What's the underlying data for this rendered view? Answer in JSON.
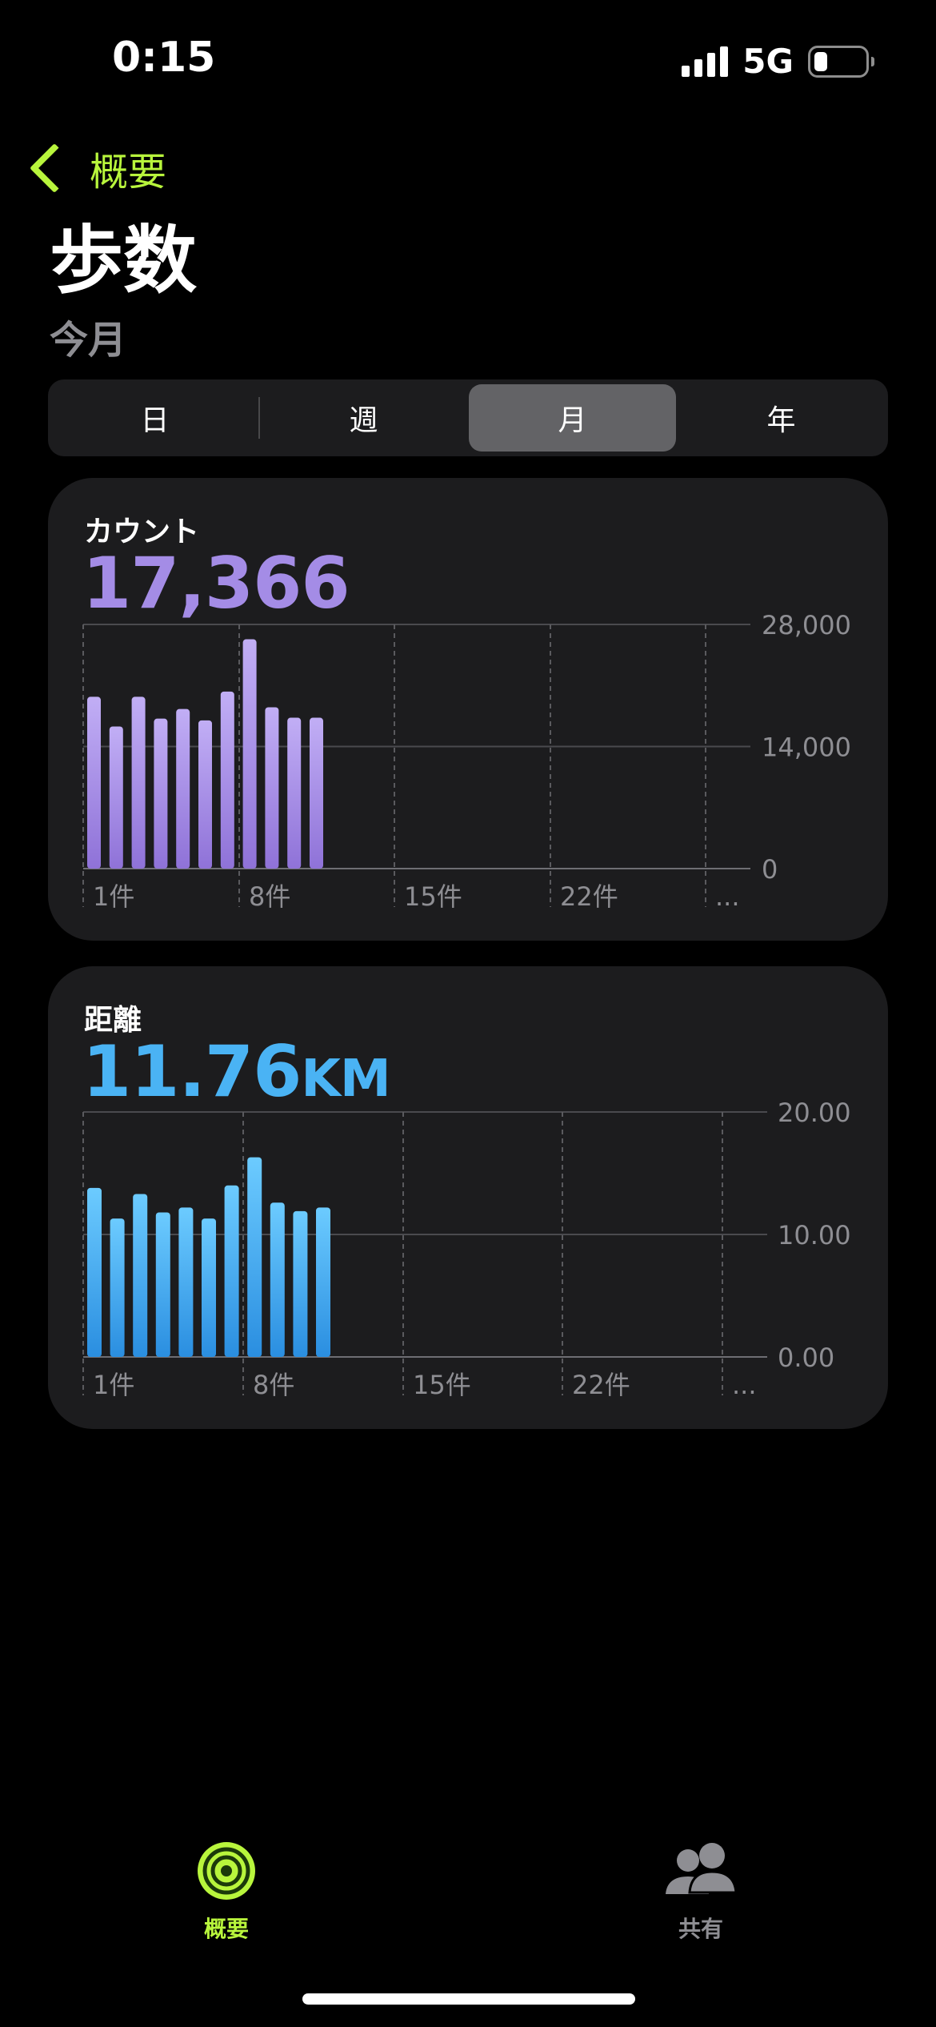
{
  "status_bar": {
    "time": "0:15",
    "network": "5G"
  },
  "nav": {
    "back_label": "概要"
  },
  "page": {
    "title": "歩数",
    "subtitle": "今月"
  },
  "segments": [
    {
      "label": "日",
      "active": false
    },
    {
      "label": "週",
      "active": false
    },
    {
      "label": "月",
      "active": true
    },
    {
      "label": "年",
      "active": false
    }
  ],
  "colors": {
    "accent": "#b8f53c",
    "steps": "#a48ce6",
    "distance": "#4ab3f4",
    "inactive": "#8e8e93"
  },
  "cards": {
    "steps": {
      "label": "カウント",
      "value": "17,366",
      "unit": ""
    },
    "distance": {
      "label": "距離",
      "value": "11.76",
      "unit": "KM"
    }
  },
  "chart_data": [
    {
      "type": "bar",
      "name": "steps",
      "categories": [
        1,
        2,
        3,
        4,
        5,
        6,
        7,
        8,
        9,
        10,
        11
      ],
      "values": [
        19700,
        16300,
        19700,
        17200,
        18300,
        17000,
        20300,
        26300,
        18500,
        17300,
        17300
      ],
      "x_tick_labels": [
        "1件",
        "8件",
        "15件",
        "22件",
        "..."
      ],
      "y_tick_labels": [
        "28,000",
        "14,000",
        "0"
      ],
      "ylim": [
        0,
        28000
      ],
      "grid": true
    },
    {
      "type": "bar",
      "name": "distance",
      "categories": [
        1,
        2,
        3,
        4,
        5,
        6,
        7,
        8,
        9,
        10,
        11
      ],
      "values": [
        13.8,
        11.3,
        13.3,
        11.8,
        12.2,
        11.3,
        14.0,
        16.3,
        12.6,
        11.9,
        12.2
      ],
      "x_tick_labels": [
        "1件",
        "8件",
        "15件",
        "22件",
        "..."
      ],
      "y_tick_labels": [
        "20.00",
        "10.00",
        "0.00"
      ],
      "ylim": [
        0,
        20
      ],
      "grid": true
    }
  ],
  "tabs": [
    {
      "label": "概要",
      "icon": "activity-rings-icon",
      "active": true
    },
    {
      "label": "共有",
      "icon": "people-icon",
      "active": false
    }
  ]
}
